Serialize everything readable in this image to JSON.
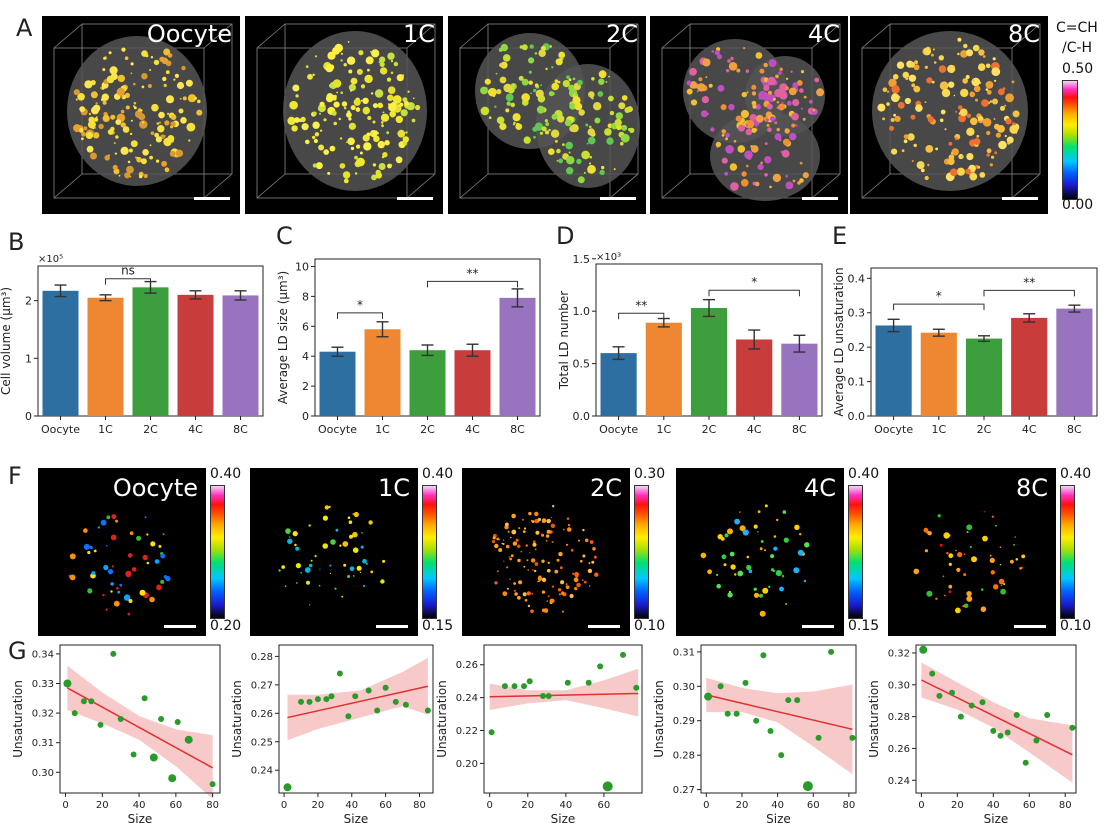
{
  "panel_letters": {
    "A": "A",
    "B": "B",
    "C": "C",
    "D": "D",
    "E": "E",
    "F": "F",
    "G": "G"
  },
  "stages": [
    "Oocyte",
    "1C",
    "2C",
    "4C",
    "8C"
  ],
  "colors": {
    "oocyte": "#2d6fa0",
    "c1": "#ed8731",
    "c2": "#3c9e3c",
    "c4": "#c83c3c",
    "c8": "#9873be",
    "scatter": "#2a9a2a",
    "fit": "#e03030",
    "band": "#f7c0c0"
  },
  "colorbar_A": {
    "title_line1": "C=CH",
    "title_line2": "/C-H",
    "max": "0.50",
    "min": "0.00"
  },
  "colorbars_F": [
    {
      "max": "0.40",
      "min": "0.20"
    },
    {
      "max": "0.40",
      "min": "0.15"
    },
    {
      "max": "0.30",
      "min": "0.10"
    },
    {
      "max": "0.40",
      "min": "0.15"
    },
    {
      "max": "0.40",
      "min": "0.10"
    }
  ],
  "chart_data": [
    {
      "id": "B",
      "type": "bar",
      "categories": [
        "Oocyte",
        "1C",
        "2C",
        "4C",
        "8C"
      ],
      "values": [
        2.17,
        2.05,
        2.23,
        2.1,
        2.09
      ],
      "errors": [
        0.1,
        0.05,
        0.1,
        0.07,
        0.08
      ],
      "ylabel": "Cell volume (μm³)",
      "multiplier": "×10⁵",
      "ylim": [
        0,
        2.6
      ],
      "yticks": [
        0,
        1,
        2
      ],
      "sig": [
        {
          "from": 1,
          "to": 2,
          "label": "ns",
          "y": 2.38
        }
      ]
    },
    {
      "id": "C",
      "type": "bar",
      "categories": [
        "Oocyte",
        "1C",
        "2C",
        "4C",
        "8C"
      ],
      "values": [
        4.3,
        5.8,
        4.4,
        4.4,
        7.9
      ],
      "errors": [
        0.3,
        0.5,
        0.35,
        0.4,
        0.6
      ],
      "ylabel": "Average LD size (μm³)",
      "multiplier": "",
      "ylim": [
        0,
        10.5
      ],
      "yticks": [
        0,
        2,
        4,
        6,
        8,
        10
      ],
      "sig": [
        {
          "from": 0,
          "to": 1,
          "label": "*",
          "y": 6.9
        },
        {
          "from": 2,
          "to": 4,
          "label": "**",
          "y": 9.0
        }
      ]
    },
    {
      "id": "D",
      "type": "bar",
      "categories": [
        "Oocyte",
        "1C",
        "2C",
        "4C",
        "8C"
      ],
      "values": [
        0.6,
        0.89,
        1.03,
        0.73,
        0.69
      ],
      "errors": [
        0.06,
        0.04,
        0.08,
        0.09,
        0.08
      ],
      "ylabel": "Total LD number",
      "multiplier": "×10³",
      "ylim": [
        0,
        1.45
      ],
      "yticks": [
        0.0,
        0.5,
        1.0,
        1.5
      ],
      "ytick_labels": [
        "0.0",
        "0.5",
        "1.0",
        "1.5"
      ],
      "sig": [
        {
          "from": 0,
          "to": 1,
          "label": "**",
          "y": 0.98
        },
        {
          "from": 2,
          "to": 4,
          "label": "*",
          "y": 1.2
        }
      ]
    },
    {
      "id": "E",
      "type": "bar",
      "categories": [
        "Oocyte",
        "1C",
        "2C",
        "4C",
        "8C"
      ],
      "values": [
        0.263,
        0.242,
        0.225,
        0.285,
        0.312
      ],
      "errors": [
        0.018,
        0.01,
        0.008,
        0.012,
        0.01
      ],
      "ylabel": "Average LD unsaturation",
      "multiplier": "",
      "ylim": [
        0,
        0.43
      ],
      "yticks": [
        0.0,
        0.1,
        0.2,
        0.3,
        0.4
      ],
      "ytick_labels": [
        "0.0",
        "0.1",
        "0.2",
        "0.3",
        "0.4"
      ],
      "sig": [
        {
          "from": 0,
          "to": 2,
          "label": "*",
          "y": 0.325
        },
        {
          "from": 2,
          "to": 4,
          "label": "**",
          "y": 0.365
        }
      ]
    },
    {
      "id": "G1",
      "type": "scatter",
      "xlabel": "Size",
      "ylabel": "Unsaturation",
      "xlim": [
        -3,
        84
      ],
      "ylim": [
        0.293,
        0.343
      ],
      "xticks": [
        0,
        20,
        40,
        60,
        80
      ],
      "yticks": [
        0.3,
        0.31,
        0.32,
        0.33,
        0.34
      ],
      "ytick_labels": [
        "0.30",
        "0.31",
        "0.32",
        "0.33",
        "0.34"
      ],
      "points": [
        [
          1,
          0.33,
          3
        ],
        [
          5,
          0.32,
          2
        ],
        [
          10,
          0.324,
          2
        ],
        [
          14,
          0.324,
          2
        ],
        [
          19,
          0.316,
          2
        ],
        [
          26,
          0.34,
          2
        ],
        [
          30,
          0.318,
          2
        ],
        [
          37,
          0.306,
          2
        ],
        [
          43,
          0.325,
          2
        ],
        [
          48,
          0.305,
          3
        ],
        [
          52,
          0.318,
          2
        ],
        [
          58,
          0.298,
          3
        ],
        [
          61,
          0.317,
          2
        ],
        [
          67,
          0.311,
          3
        ],
        [
          80,
          0.296,
          2
        ]
      ],
      "fit": [
        [
          1,
          0.3285
        ],
        [
          80,
          0.3015
        ]
      ],
      "band_upper": [
        [
          1,
          0.336
        ],
        [
          20,
          0.327
        ],
        [
          40,
          0.319
        ],
        [
          60,
          0.3145
        ],
        [
          80,
          0.3125
        ]
      ],
      "band_lower": [
        [
          1,
          0.321
        ],
        [
          20,
          0.3165
        ],
        [
          40,
          0.311
        ],
        [
          60,
          0.302
        ],
        [
          80,
          0.291
        ]
      ]
    },
    {
      "id": "G2",
      "type": "scatter",
      "xlabel": "Size",
      "ylabel": "Unsaturation",
      "xlim": [
        -3,
        88
      ],
      "ylim": [
        0.232,
        0.284
      ],
      "xticks": [
        0,
        20,
        40,
        60,
        80
      ],
      "yticks": [
        0.24,
        0.25,
        0.26,
        0.27,
        0.28
      ],
      "ytick_labels": [
        "0.24",
        "0.25",
        "0.26",
        "0.27",
        "0.28"
      ],
      "points": [
        [
          2,
          0.234,
          3
        ],
        [
          10,
          0.264,
          2
        ],
        [
          15,
          0.264,
          2
        ],
        [
          20,
          0.265,
          2
        ],
        [
          25,
          0.265,
          2
        ],
        [
          28,
          0.266,
          2
        ],
        [
          33,
          0.274,
          2
        ],
        [
          38,
          0.259,
          2
        ],
        [
          42,
          0.266,
          2
        ],
        [
          50,
          0.268,
          2
        ],
        [
          55,
          0.261,
          2
        ],
        [
          60,
          0.269,
          2
        ],
        [
          66,
          0.264,
          2
        ],
        [
          72,
          0.263,
          2
        ],
        [
          85,
          0.261,
          2
        ]
      ],
      "fit": [
        [
          2,
          0.2585
        ],
        [
          85,
          0.2695
        ]
      ],
      "band_upper": [
        [
          2,
          0.2665
        ],
        [
          20,
          0.2665
        ],
        [
          45,
          0.268
        ],
        [
          70,
          0.2745
        ],
        [
          85,
          0.2795
        ]
      ],
      "band_lower": [
        [
          2,
          0.2505
        ],
        [
          20,
          0.2545
        ],
        [
          45,
          0.2585
        ],
        [
          70,
          0.2625
        ],
        [
          85,
          0.2595
        ]
      ]
    },
    {
      "id": "G3",
      "type": "scatter",
      "xlabel": "Size",
      "ylabel": "Unsaturation",
      "xlim": [
        -3,
        80
      ],
      "ylim": [
        0.182,
        0.272
      ],
      "xticks": [
        0,
        20,
        40,
        60
      ],
      "yticks": [
        0.2,
        0.22,
        0.24,
        0.26
      ],
      "ytick_labels": [
        "0.20",
        "0.22",
        "0.24",
        "0.26"
      ],
      "points": [
        [
          1,
          0.219,
          2
        ],
        [
          8,
          0.247,
          2
        ],
        [
          13,
          0.247,
          2
        ],
        [
          18,
          0.247,
          2
        ],
        [
          21,
          0.25,
          2
        ],
        [
          28,
          0.241,
          2
        ],
        [
          31,
          0.241,
          2
        ],
        [
          41,
          0.249,
          2
        ],
        [
          52,
          0.249,
          2
        ],
        [
          58,
          0.259,
          2
        ],
        [
          62,
          0.186,
          4
        ],
        [
          70,
          0.266,
          2
        ],
        [
          77,
          0.246,
          2
        ]
      ],
      "fit": [
        [
          0,
          0.2405
        ],
        [
          78,
          0.2425
        ]
      ],
      "band_upper": [
        [
          0,
          0.2485
        ],
        [
          20,
          0.2445
        ],
        [
          40,
          0.2445
        ],
        [
          60,
          0.2505
        ],
        [
          78,
          0.2575
        ]
      ],
      "band_lower": [
        [
          0,
          0.2325
        ],
        [
          20,
          0.2365
        ],
        [
          40,
          0.2385
        ],
        [
          60,
          0.2335
        ],
        [
          78,
          0.2285
        ]
      ]
    },
    {
      "id": "G4",
      "type": "scatter",
      "xlabel": "Size",
      "ylabel": "Unsaturation",
      "xlim": [
        -3,
        84
      ],
      "ylim": [
        0.269,
        0.312
      ],
      "xticks": [
        0,
        20,
        40,
        60,
        80
      ],
      "yticks": [
        0.27,
        0.28,
        0.29,
        0.3,
        0.31
      ],
      "ytick_labels": [
        "0.27",
        "0.28",
        "0.29",
        "0.30",
        "0.31"
      ],
      "points": [
        [
          1,
          0.297,
          3
        ],
        [
          8,
          0.3,
          2
        ],
        [
          12,
          0.292,
          2
        ],
        [
          17,
          0.292,
          2
        ],
        [
          22,
          0.301,
          2
        ],
        [
          28,
          0.29,
          2
        ],
        [
          32,
          0.309,
          2
        ],
        [
          36,
          0.287,
          2
        ],
        [
          42,
          0.28,
          2
        ],
        [
          46,
          0.296,
          2
        ],
        [
          51,
          0.296,
          2
        ],
        [
          57,
          0.271,
          4
        ],
        [
          63,
          0.285,
          2
        ],
        [
          70,
          0.31,
          2
        ],
        [
          82,
          0.285,
          2
        ]
      ],
      "fit": [
        [
          0,
          0.2975
        ],
        [
          82,
          0.2875
        ]
      ],
      "band_upper": [
        [
          0,
          0.3025
        ],
        [
          20,
          0.2995
        ],
        [
          40,
          0.298
        ],
        [
          60,
          0.2985
        ],
        [
          82,
          0.3005
        ]
      ],
      "band_lower": [
        [
          0,
          0.2925
        ],
        [
          20,
          0.2925
        ],
        [
          40,
          0.2895
        ],
        [
          60,
          0.2825
        ],
        [
          82,
          0.2745
        ]
      ]
    },
    {
      "id": "G5",
      "type": "scatter",
      "xlabel": "Size",
      "ylabel": "Unsaturation",
      "xlim": [
        -3,
        86
      ],
      "ylim": [
        0.232,
        0.325
      ],
      "xticks": [
        0,
        20,
        40,
        60,
        80
      ],
      "yticks": [
        0.24,
        0.26,
        0.28,
        0.3,
        0.32
      ],
      "ytick_labels": [
        "0.24",
        "0.26",
        "0.28",
        "0.30",
        "0.32"
      ],
      "points": [
        [
          1,
          0.322,
          3
        ],
        [
          6,
          0.307,
          2
        ],
        [
          10,
          0.293,
          2
        ],
        [
          17,
          0.295,
          2
        ],
        [
          22,
          0.28,
          2
        ],
        [
          28,
          0.287,
          2
        ],
        [
          34,
          0.289,
          2
        ],
        [
          40,
          0.271,
          2
        ],
        [
          44,
          0.268,
          2
        ],
        [
          48,
          0.27,
          2
        ],
        [
          53,
          0.281,
          2
        ],
        [
          58,
          0.251,
          2
        ],
        [
          64,
          0.265,
          2
        ],
        [
          70,
          0.281,
          2
        ],
        [
          84,
          0.273,
          2
        ]
      ],
      "fit": [
        [
          0,
          0.303
        ],
        [
          84,
          0.256
        ]
      ],
      "band_upper": [
        [
          0,
          0.314
        ],
        [
          20,
          0.3015
        ],
        [
          40,
          0.289
        ],
        [
          60,
          0.279
        ],
        [
          84,
          0.2745
        ]
      ],
      "band_lower": [
        [
          0,
          0.292
        ],
        [
          20,
          0.2845
        ],
        [
          40,
          0.273
        ],
        [
          60,
          0.2575
        ],
        [
          84,
          0.2385
        ]
      ]
    }
  ]
}
